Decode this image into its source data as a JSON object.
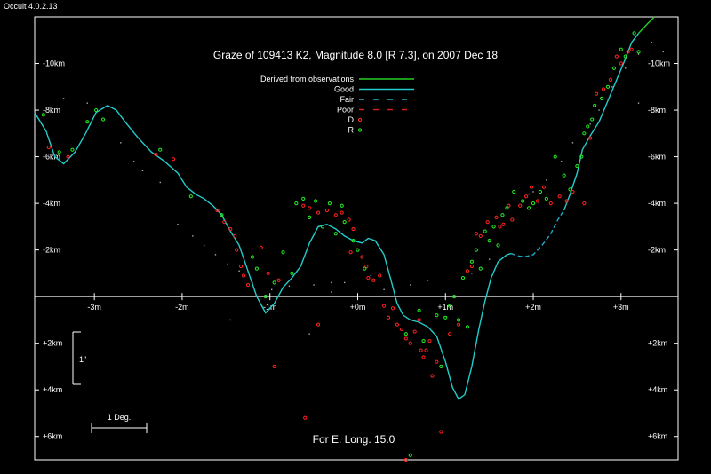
{
  "app": {
    "version_label": "Occult 4.0.2.13"
  },
  "chart_data": {
    "type": "scatter",
    "title": "Graze of  109413 K2,  Magnitude 8.0 [R 7.3],  on 2007 Dec 18",
    "footer": "For E. Long. 15.0",
    "x_ticks": [
      {
        "value": -3,
        "label": "-3m"
      },
      {
        "value": -2,
        "label": "-2m"
      },
      {
        "value": -1,
        "label": "-1m"
      },
      {
        "value": 0,
        "label": "+0m"
      },
      {
        "value": 1,
        "label": "+1m"
      },
      {
        "value": 2,
        "label": "+2m"
      },
      {
        "value": 3,
        "label": "+3m"
      }
    ],
    "y_ticks": [
      {
        "value": -10,
        "label": "-10km"
      },
      {
        "value": -8,
        "label": "-8km"
      },
      {
        "value": -6,
        "label": "-6km"
      },
      {
        "value": -4,
        "label": "-4km"
      },
      {
        "value": -2,
        "label": "-2km"
      },
      {
        "value": 2,
        "label": "+2km"
      },
      {
        "value": 4,
        "label": "+4km"
      },
      {
        "value": 6,
        "label": "+6km"
      }
    ],
    "xlim": [
      -3.68,
      3.65
    ],
    "ylim": [
      -12.0,
      7.0
    ],
    "legend": [
      {
        "label": "Derived from observations",
        "style": "solid",
        "color": "#22cc22"
      },
      {
        "label": "Good",
        "style": "solid",
        "color": "#22cccc"
      },
      {
        "label": "Fair",
        "style": "dashed",
        "color": "#22aacc"
      },
      {
        "label": "Poor",
        "style": "dashed",
        "color": "#cc2222"
      },
      {
        "label": "D",
        "style": "marker",
        "color": "#ff2222"
      },
      {
        "label": "R",
        "style": "marker",
        "color": "#22ee22"
      }
    ],
    "scale_bars": [
      {
        "label": "1\"",
        "orientation": "vertical"
      },
      {
        "label": "1 Deg.",
        "orientation": "horizontal"
      }
    ],
    "colors": {
      "background": "#000000",
      "axes": "#ffffff",
      "good": "#22cccc",
      "fair": "#22aacc",
      "derived": "#22cc22",
      "disappear": "#ff2222",
      "reappear": "#22ee22",
      "grey": "#aaaaaa"
    },
    "profile_good": [
      [
        -3.68,
        -7.9
      ],
      [
        -3.55,
        -7.1
      ],
      [
        -3.45,
        -6.0
      ],
      [
        -3.35,
        -5.7
      ],
      [
        -3.22,
        -6.2
      ],
      [
        -3.1,
        -7.0
      ],
      [
        -2.98,
        -7.9
      ],
      [
        -2.85,
        -8.2
      ],
      [
        -2.75,
        -8.0
      ],
      [
        -2.65,
        -7.5
      ],
      [
        -2.5,
        -6.8
      ],
      [
        -2.35,
        -6.2
      ],
      [
        -2.2,
        -5.8
      ],
      [
        -2.05,
        -5.3
      ],
      [
        -1.95,
        -4.7
      ],
      [
        -1.85,
        -4.4
      ],
      [
        -1.75,
        -4.2
      ],
      [
        -1.65,
        -3.9
      ],
      [
        -1.55,
        -3.5
      ],
      [
        -1.45,
        -2.8
      ],
      [
        -1.35,
        -2.2
      ],
      [
        -1.25,
        -1.1
      ],
      [
        -1.15,
        0.0
      ],
      [
        -1.05,
        0.7
      ],
      [
        -0.95,
        0.3
      ],
      [
        -0.85,
        -0.4
      ],
      [
        -0.75,
        -0.8
      ],
      [
        -0.65,
        -1.3
      ],
      [
        -0.55,
        -2.3
      ],
      [
        -0.45,
        -3.0
      ],
      [
        -0.35,
        -3.1
      ],
      [
        -0.25,
        -2.9
      ],
      [
        -0.15,
        -2.6
      ],
      [
        -0.05,
        -2.4
      ],
      [
        0.05,
        -2.3
      ],
      [
        0.12,
        -2.5
      ],
      [
        0.2,
        -2.4
      ],
      [
        0.3,
        -1.8
      ],
      [
        0.38,
        -0.7
      ],
      [
        0.45,
        0.3
      ],
      [
        0.52,
        0.8
      ],
      [
        0.6,
        1.0
      ],
      [
        0.7,
        1.1
      ],
      [
        0.8,
        1.3
      ],
      [
        0.9,
        1.7
      ],
      [
        1.0,
        2.8
      ],
      [
        1.08,
        3.9
      ],
      [
        1.15,
        4.4
      ],
      [
        1.22,
        4.2
      ],
      [
        1.3,
        3.0
      ],
      [
        1.38,
        1.4
      ],
      [
        1.45,
        0.2
      ],
      [
        1.52,
        -0.8
      ],
      [
        1.6,
        -1.5
      ],
      [
        1.7,
        -1.8
      ],
      [
        1.75,
        -1.85
      ]
    ],
    "profile_fair": [
      [
        1.75,
        -1.85
      ],
      [
        1.82,
        -1.75
      ],
      [
        1.9,
        -1.7
      ],
      [
        2.0,
        -1.8
      ],
      [
        2.1,
        -2.2
      ],
      [
        2.2,
        -2.7
      ],
      [
        2.28,
        -3.3
      ],
      [
        2.35,
        -3.7
      ]
    ],
    "profile_good2": [
      [
        2.35,
        -3.7
      ],
      [
        2.42,
        -4.4
      ],
      [
        2.5,
        -5.3
      ],
      [
        2.56,
        -6.3
      ],
      [
        2.65,
        -6.9
      ],
      [
        2.75,
        -7.5
      ],
      [
        2.85,
        -8.4
      ],
      [
        2.95,
        -9.3
      ],
      [
        3.05,
        -10.2
      ],
      [
        3.12,
        -10.9
      ],
      [
        3.2,
        -11.3
      ]
    ],
    "profile_derived": [
      [
        3.2,
        -11.3
      ],
      [
        3.3,
        -11.7
      ],
      [
        3.38,
        -12.0
      ]
    ],
    "points_d": [
      [
        -3.52,
        -6.4
      ],
      [
        -3.3,
        -6.0
      ],
      [
        -2.3,
        -6.1
      ],
      [
        -2.1,
        -5.9
      ],
      [
        -1.6,
        -3.7
      ],
      [
        -1.52,
        -3.2
      ],
      [
        -1.45,
        -2.9
      ],
      [
        -1.4,
        -2.6
      ],
      [
        -1.38,
        -2.0
      ],
      [
        -1.33,
        -1.3
      ],
      [
        -1.3,
        -0.9
      ],
      [
        -1.25,
        -0.5
      ],
      [
        -1.1,
        -2.1
      ],
      [
        -1.02,
        -1.0
      ],
      [
        -0.9,
        -0.7
      ],
      [
        -0.62,
        -3.9
      ],
      [
        -0.55,
        -3.8
      ],
      [
        -0.45,
        -3.6
      ],
      [
        -0.35,
        -3.7
      ],
      [
        -0.25,
        -3.5
      ],
      [
        -0.18,
        -3.6
      ],
      [
        -0.1,
        -3.3
      ],
      [
        -0.05,
        -2.9
      ],
      [
        0.05,
        -1.7
      ],
      [
        0.1,
        -1.3
      ],
      [
        0.12,
        -0.8
      ],
      [
        0.18,
        -0.7
      ],
      [
        0.25,
        -0.9
      ],
      [
        0.3,
        0.4
      ],
      [
        0.35,
        0.9
      ],
      [
        0.4,
        0.5
      ],
      [
        0.45,
        1.2
      ],
      [
        0.5,
        1.4
      ],
      [
        0.55,
        1.8
      ],
      [
        0.6,
        2.0
      ],
      [
        0.65,
        1.5
      ],
      [
        0.7,
        1.0
      ],
      [
        0.72,
        2.3
      ],
      [
        0.75,
        2.6
      ],
      [
        0.78,
        2.3
      ],
      [
        0.82,
        1.9
      ],
      [
        0.85,
        3.4
      ],
      [
        0.9,
        2.8
      ],
      [
        0.95,
        5.8
      ],
      [
        1.05,
        1.6
      ],
      [
        1.15,
        1.2
      ],
      [
        1.25,
        -1.1
      ],
      [
        1.3,
        -1.3
      ],
      [
        1.35,
        -2.7
      ],
      [
        1.4,
        -2.6
      ],
      [
        1.48,
        -3.2
      ],
      [
        1.58,
        -3.4
      ],
      [
        1.62,
        -3.0
      ],
      [
        1.66,
        -3.1
      ],
      [
        1.72,
        -3.9
      ],
      [
        1.76,
        -3.3
      ],
      [
        1.85,
        -3.9
      ],
      [
        1.92,
        -4.3
      ],
      [
        1.98,
        -4.7
      ],
      [
        2.05,
        -4.1
      ],
      [
        2.12,
        -4.7
      ],
      [
        2.2,
        -4.0
      ],
      [
        2.3,
        -4.3
      ],
      [
        2.38,
        -4.1
      ],
      [
        2.45,
        -4.5
      ],
      [
        2.58,
        -4.0
      ],
      [
        2.65,
        -6.8
      ],
      [
        2.72,
        -8.7
      ],
      [
        2.8,
        -8.9
      ],
      [
        2.88,
        -9.3
      ],
      [
        2.95,
        -10.3
      ],
      [
        3.0,
        -10.0
      ],
      [
        3.08,
        -10.5
      ],
      [
        3.12,
        -10.6
      ],
      [
        -0.08,
        -1.9
      ],
      [
        -0.45,
        1.2
      ],
      [
        -0.95,
        3.0
      ],
      [
        -0.6,
        5.2
      ],
      [
        0.55,
        7.0
      ]
    ],
    "points_r": [
      [
        -3.58,
        -7.8
      ],
      [
        -3.4,
        -6.2
      ],
      [
        -3.25,
        -6.3
      ],
      [
        -3.08,
        -7.5
      ],
      [
        -2.98,
        -8.0
      ],
      [
        -2.9,
        -7.6
      ],
      [
        -2.25,
        -6.3
      ],
      [
        -1.9,
        -4.3
      ],
      [
        -1.55,
        -3.5
      ],
      [
        -1.2,
        -1.7
      ],
      [
        -1.15,
        -1.2
      ],
      [
        -1.05,
        0.0
      ],
      [
        -0.95,
        -0.6
      ],
      [
        -0.85,
        -1.9
      ],
      [
        -0.75,
        -1.0
      ],
      [
        -0.7,
        -4.0
      ],
      [
        -0.62,
        -4.2
      ],
      [
        -0.55,
        -3.4
      ],
      [
        -0.48,
        -4.1
      ],
      [
        -0.4,
        -3.0
      ],
      [
        -0.32,
        -4.0
      ],
      [
        -0.25,
        -2.7
      ],
      [
        -0.15,
        -3.2
      ],
      [
        -0.05,
        -2.4
      ],
      [
        0.0,
        -2.0
      ],
      [
        0.08,
        -1.2
      ],
      [
        0.55,
        1.6
      ],
      [
        0.7,
        0.6
      ],
      [
        0.75,
        1.9
      ],
      [
        0.9,
        0.8
      ],
      [
        1.0,
        0.9
      ],
      [
        1.05,
        0.4
      ],
      [
        1.1,
        0.0
      ],
      [
        1.15,
        1.0
      ],
      [
        1.2,
        -0.8
      ],
      [
        1.25,
        1.3
      ],
      [
        1.3,
        -1.5
      ],
      [
        1.35,
        -2.0
      ],
      [
        1.4,
        -1.2
      ],
      [
        1.45,
        -2.8
      ],
      [
        1.5,
        -2.4
      ],
      [
        1.55,
        -3.0
      ],
      [
        1.6,
        -2.2
      ],
      [
        1.65,
        -3.5
      ],
      [
        1.7,
        -3.8
      ],
      [
        1.78,
        -4.5
      ],
      [
        1.88,
        -4.1
      ],
      [
        1.95,
        -3.8
      ],
      [
        2.0,
        -4.0
      ],
      [
        2.08,
        -4.5
      ],
      [
        2.15,
        -4.2
      ],
      [
        2.25,
        -6.0
      ],
      [
        2.35,
        -5.2
      ],
      [
        2.42,
        -4.6
      ],
      [
        2.5,
        -5.6
      ],
      [
        2.55,
        -6.0
      ],
      [
        2.58,
        -7.0
      ],
      [
        2.62,
        -7.3
      ],
      [
        2.67,
        -7.6
      ],
      [
        2.7,
        -8.2
      ],
      [
        2.78,
        -8.5
      ],
      [
        2.85,
        -9.0
      ],
      [
        2.92,
        -9.8
      ],
      [
        3.0,
        -10.6
      ],
      [
        3.05,
        -10.3
      ],
      [
        3.15,
        -11.3
      ],
      [
        3.2,
        -10.5
      ],
      [
        0.95,
        3.0
      ],
      [
        -0.18,
        -3.9
      ],
      [
        0.6,
        6.8
      ]
    ],
    "points_grey": [
      [
        -3.35,
        -8.5
      ],
      [
        -3.08,
        -8.3
      ],
      [
        -2.7,
        -6.6
      ],
      [
        -2.55,
        -5.8
      ],
      [
        -2.45,
        -5.4
      ],
      [
        -2.25,
        -4.9
      ],
      [
        -2.05,
        -3.1
      ],
      [
        -1.88,
        -2.6
      ],
      [
        -1.75,
        -2.2
      ],
      [
        -1.62,
        -1.8
      ],
      [
        -1.48,
        -1.4
      ],
      [
        -1.35,
        -1.1
      ],
      [
        -1.2,
        -0.6
      ],
      [
        -0.98,
        -0.3
      ],
      [
        -0.78,
        -0.45
      ],
      [
        -0.5,
        -0.5
      ],
      [
        -0.3,
        -0.6
      ],
      [
        -0.15,
        -0.6
      ],
      [
        0.15,
        -0.9
      ],
      [
        0.3,
        -0.3
      ],
      [
        0.6,
        -0.5
      ],
      [
        0.8,
        -0.7
      ],
      [
        1.3,
        -1.0
      ],
      [
        1.5,
        -1.6
      ],
      [
        2.0,
        -4.5
      ],
      [
        2.15,
        -5.0
      ],
      [
        2.32,
        -5.8
      ],
      [
        2.45,
        -6.6
      ],
      [
        2.65,
        -7.4
      ],
      [
        2.75,
        -8.0
      ],
      [
        2.9,
        -9.0
      ],
      [
        3.05,
        -9.8
      ],
      [
        3.2,
        -10.4
      ],
      [
        3.35,
        -10.9
      ],
      [
        3.48,
        -10.5
      ],
      [
        -0.55,
        1.6
      ],
      [
        -0.3,
        -0.2
      ],
      [
        -1.45,
        1.0
      ],
      [
        1.95,
        -4.4
      ],
      [
        3.2,
        -8.3
      ]
    ]
  }
}
